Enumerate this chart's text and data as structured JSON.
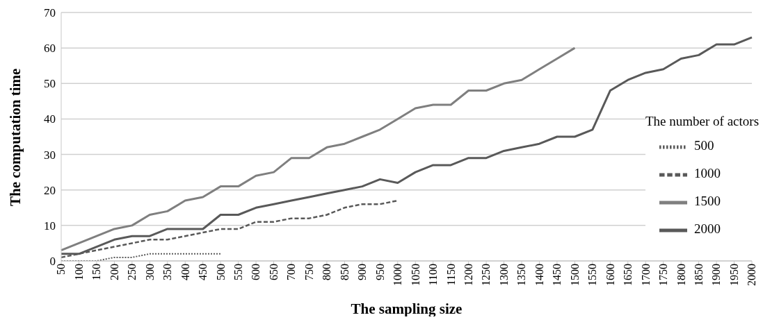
{
  "chart_data": {
    "type": "line",
    "xlabel": "The sampling size",
    "ylabel": "The computation time",
    "legend_title": "The number of actors",
    "categories": [
      "50",
      "100",
      "150",
      "200",
      "250",
      "300",
      "350",
      "400",
      "450",
      "500",
      "550",
      "600",
      "650",
      "700",
      "750",
      "800",
      "850",
      "900",
      "950",
      "1000",
      "1050",
      "1100",
      "1150",
      "1200",
      "1250",
      "1300",
      "1350",
      "1400",
      "1450",
      "1500",
      "1550",
      "1600",
      "1650",
      "1700",
      "1750",
      "1800",
      "1850",
      "1900",
      "1950",
      "2000"
    ],
    "series": [
      {
        "name": "500",
        "color": "#595959",
        "line_style": "dotted",
        "values": [
          0,
          0,
          0,
          1,
          1,
          2,
          2,
          2,
          2,
          2,
          null,
          null,
          null,
          null,
          null,
          null,
          null,
          null,
          null,
          null,
          null,
          null,
          null,
          null,
          null,
          null,
          null,
          null,
          null,
          null,
          null,
          null,
          null,
          null,
          null,
          null,
          null,
          null,
          null,
          null
        ]
      },
      {
        "name": "1000",
        "color": "#595959",
        "line_style": "dashed",
        "values": [
          1,
          2,
          3,
          4,
          5,
          6,
          6,
          7,
          8,
          9,
          9,
          11,
          11,
          12,
          12,
          13,
          15,
          16,
          16,
          17,
          null,
          null,
          null,
          null,
          null,
          null,
          null,
          null,
          null,
          null,
          null,
          null,
          null,
          null,
          null,
          null,
          null,
          null,
          null,
          null
        ]
      },
      {
        "name": "1500",
        "color": "#7f7f7f",
        "line_style": "solid",
        "values": [
          3,
          5,
          7,
          9,
          10,
          13,
          14,
          17,
          18,
          21,
          21,
          24,
          25,
          29,
          29,
          32,
          33,
          35,
          37,
          40,
          43,
          44,
          44,
          48,
          48,
          50,
          51,
          54,
          57,
          60,
          null,
          null,
          null,
          null,
          null,
          null,
          null,
          null,
          null,
          null
        ]
      },
      {
        "name": "2000",
        "color": "#595959",
        "line_style": "solid",
        "values": [
          2,
          2,
          4,
          6,
          7,
          7,
          9,
          9,
          9,
          13,
          13,
          15,
          16,
          17,
          18,
          19,
          20,
          21,
          23,
          22,
          25,
          27,
          27,
          29,
          29,
          31,
          32,
          33,
          35,
          35,
          37,
          48,
          51,
          53,
          54,
          57,
          58,
          61,
          61,
          63
        ]
      }
    ],
    "ylim": [
      0,
      70
    ],
    "yticks": [
      0,
      10,
      20,
      30,
      40,
      50,
      60,
      70
    ],
    "grid": "y",
    "legend": "right",
    "marker": "none"
  }
}
